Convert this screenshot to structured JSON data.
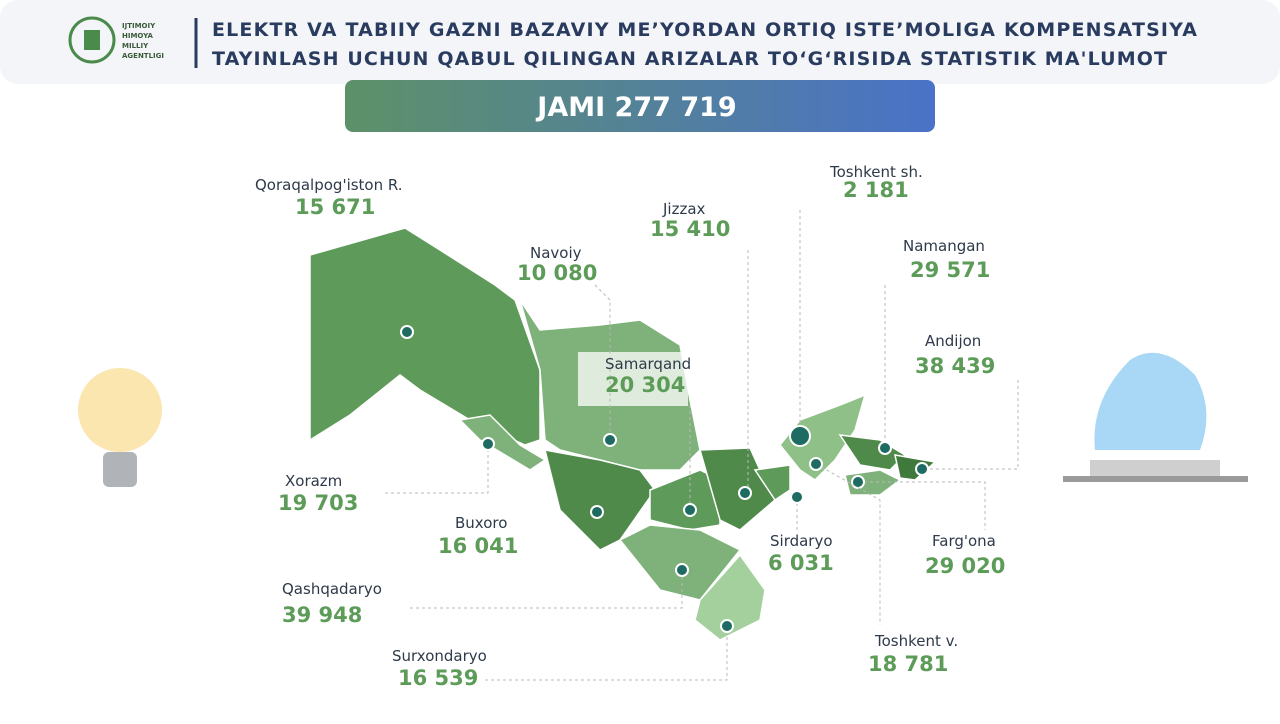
{
  "header": {
    "logo": [
      "IJTIMOIY",
      "HIMOYA",
      "MILLIY",
      "AGENTLIGI"
    ],
    "title": [
      "ELEKTR VA TABIIY GAZNI BAZAVIY ME’YORDAN ORTIQ ISTE’MOLIGA KOMPENSATSIYA",
      "TAYINLASH UCHUN QABUL QILINGAN ARIZALAR TO‘G‘RISIDA STATISTIK MA'LUMOT"
    ]
  },
  "total": "JAMI 277 719",
  "regions": [
    {
      "name": "Qoraqalpog'iston R.",
      "value": "15 671"
    },
    {
      "name": "Navoiy",
      "value": "10 080"
    },
    {
      "name": "Jizzax",
      "value": "15 410"
    },
    {
      "name": "Toshkent sh.",
      "value": "2 181"
    },
    {
      "name": "Namangan",
      "value": "29 571"
    },
    {
      "name": "Andijon",
      "value": "38 439"
    },
    {
      "name": "Samarqand",
      "value": "20 304"
    },
    {
      "name": "Xorazm",
      "value": "19 703"
    },
    {
      "name": "Buxoro",
      "value": "16 041"
    },
    {
      "name": "Sirdaryo",
      "value": "6 031"
    },
    {
      "name": "Farg'ona",
      "value": "29 020"
    },
    {
      "name": "Qashqadaryo",
      "value": "39 948"
    },
    {
      "name": "Surxondaryo",
      "value": "16 539"
    },
    {
      "name": "Toshkent v.",
      "value": "18 781"
    }
  ]
}
